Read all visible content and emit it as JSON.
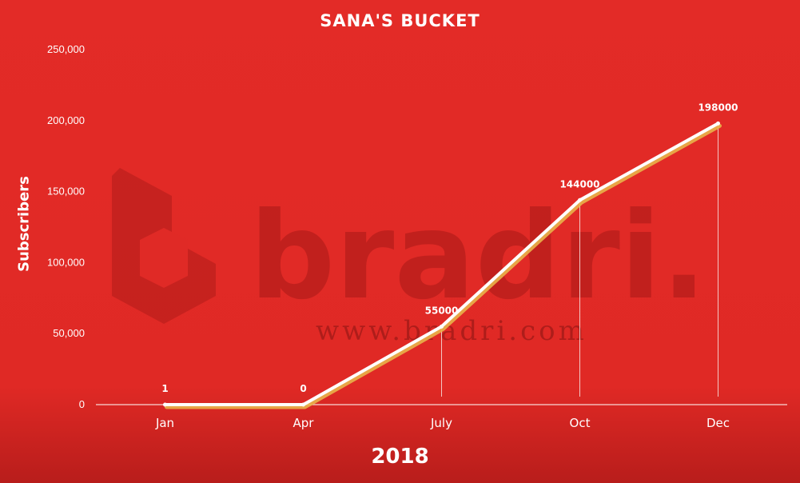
{
  "chart_data": {
    "type": "line",
    "title": "SANA'S BUCKET",
    "xlabel": "2018",
    "ylabel": "Subscribers",
    "categories": [
      "Jan",
      "Apr",
      "July",
      "Oct",
      "Dec"
    ],
    "series": [
      {
        "values": [
          1,
          0,
          55000,
          144000,
          198000
        ]
      }
    ],
    "data_labels": [
      "1",
      "0",
      "55000",
      "144000",
      "198000"
    ],
    "ylim": [
      0,
      250000
    ],
    "yticks": [
      "0",
      "50,000",
      "100,000",
      "150,000",
      "200,000",
      "250,000"
    ],
    "grid": false,
    "legend": "none",
    "colors": {
      "background": "#e02a26",
      "line": "#ffffff",
      "line_shadow": "#e9b24a",
      "text": "#ffffff"
    }
  },
  "watermark": {
    "brand": "bradri.",
    "url": "www.bradri.com"
  }
}
